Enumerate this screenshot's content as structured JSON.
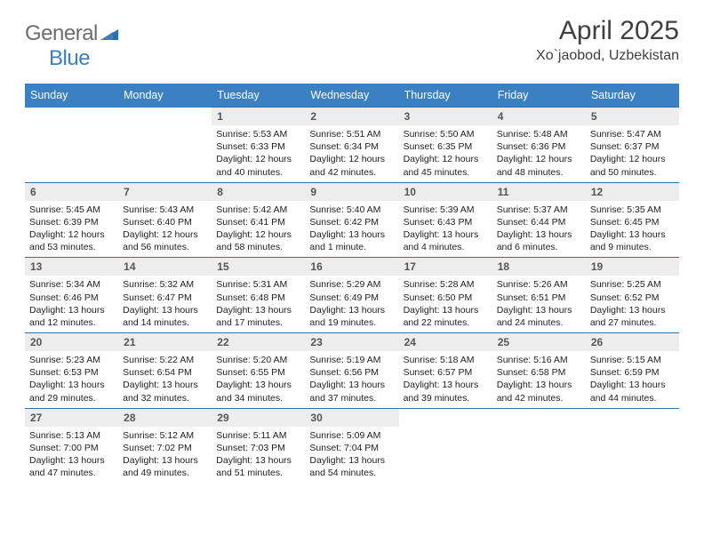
{
  "brand": {
    "part1": "General",
    "part2": "Blue"
  },
  "title": "April 2025",
  "location": "Xo`jaobod, Uzbekistan",
  "style": {
    "header_bg": "#3a80c3",
    "header_fg": "#ffffff",
    "daynum_bg": "#ededed",
    "border_color": "#3a6ea5",
    "page_bg": "#ffffff",
    "title_color": "#404040",
    "body_text": "#222222",
    "title_fontsize": 30,
    "location_fontsize": 16,
    "header_fontsize": 12.5,
    "cell_fontsize": 10.5
  },
  "days_of_week": [
    "Sunday",
    "Monday",
    "Tuesday",
    "Wednesday",
    "Thursday",
    "Friday",
    "Saturday"
  ],
  "weeks": [
    [
      null,
      null,
      {
        "n": "1",
        "sunrise": "Sunrise: 5:53 AM",
        "sunset": "Sunset: 6:33 PM",
        "daylight": "Daylight: 12 hours and 40 minutes."
      },
      {
        "n": "2",
        "sunrise": "Sunrise: 5:51 AM",
        "sunset": "Sunset: 6:34 PM",
        "daylight": "Daylight: 12 hours and 42 minutes."
      },
      {
        "n": "3",
        "sunrise": "Sunrise: 5:50 AM",
        "sunset": "Sunset: 6:35 PM",
        "daylight": "Daylight: 12 hours and 45 minutes."
      },
      {
        "n": "4",
        "sunrise": "Sunrise: 5:48 AM",
        "sunset": "Sunset: 6:36 PM",
        "daylight": "Daylight: 12 hours and 48 minutes."
      },
      {
        "n": "5",
        "sunrise": "Sunrise: 5:47 AM",
        "sunset": "Sunset: 6:37 PM",
        "daylight": "Daylight: 12 hours and 50 minutes."
      }
    ],
    [
      {
        "n": "6",
        "sunrise": "Sunrise: 5:45 AM",
        "sunset": "Sunset: 6:39 PM",
        "daylight": "Daylight: 12 hours and 53 minutes."
      },
      {
        "n": "7",
        "sunrise": "Sunrise: 5:43 AM",
        "sunset": "Sunset: 6:40 PM",
        "daylight": "Daylight: 12 hours and 56 minutes."
      },
      {
        "n": "8",
        "sunrise": "Sunrise: 5:42 AM",
        "sunset": "Sunset: 6:41 PM",
        "daylight": "Daylight: 12 hours and 58 minutes."
      },
      {
        "n": "9",
        "sunrise": "Sunrise: 5:40 AM",
        "sunset": "Sunset: 6:42 PM",
        "daylight": "Daylight: 13 hours and 1 minute."
      },
      {
        "n": "10",
        "sunrise": "Sunrise: 5:39 AM",
        "sunset": "Sunset: 6:43 PM",
        "daylight": "Daylight: 13 hours and 4 minutes."
      },
      {
        "n": "11",
        "sunrise": "Sunrise: 5:37 AM",
        "sunset": "Sunset: 6:44 PM",
        "daylight": "Daylight: 13 hours and 6 minutes."
      },
      {
        "n": "12",
        "sunrise": "Sunrise: 5:35 AM",
        "sunset": "Sunset: 6:45 PM",
        "daylight": "Daylight: 13 hours and 9 minutes."
      }
    ],
    [
      {
        "n": "13",
        "sunrise": "Sunrise: 5:34 AM",
        "sunset": "Sunset: 6:46 PM",
        "daylight": "Daylight: 13 hours and 12 minutes."
      },
      {
        "n": "14",
        "sunrise": "Sunrise: 5:32 AM",
        "sunset": "Sunset: 6:47 PM",
        "daylight": "Daylight: 13 hours and 14 minutes."
      },
      {
        "n": "15",
        "sunrise": "Sunrise: 5:31 AM",
        "sunset": "Sunset: 6:48 PM",
        "daylight": "Daylight: 13 hours and 17 minutes."
      },
      {
        "n": "16",
        "sunrise": "Sunrise: 5:29 AM",
        "sunset": "Sunset: 6:49 PM",
        "daylight": "Daylight: 13 hours and 19 minutes."
      },
      {
        "n": "17",
        "sunrise": "Sunrise: 5:28 AM",
        "sunset": "Sunset: 6:50 PM",
        "daylight": "Daylight: 13 hours and 22 minutes."
      },
      {
        "n": "18",
        "sunrise": "Sunrise: 5:26 AM",
        "sunset": "Sunset: 6:51 PM",
        "daylight": "Daylight: 13 hours and 24 minutes."
      },
      {
        "n": "19",
        "sunrise": "Sunrise: 5:25 AM",
        "sunset": "Sunset: 6:52 PM",
        "daylight": "Daylight: 13 hours and 27 minutes."
      }
    ],
    [
      {
        "n": "20",
        "sunrise": "Sunrise: 5:23 AM",
        "sunset": "Sunset: 6:53 PM",
        "daylight": "Daylight: 13 hours and 29 minutes."
      },
      {
        "n": "21",
        "sunrise": "Sunrise: 5:22 AM",
        "sunset": "Sunset: 6:54 PM",
        "daylight": "Daylight: 13 hours and 32 minutes."
      },
      {
        "n": "22",
        "sunrise": "Sunrise: 5:20 AM",
        "sunset": "Sunset: 6:55 PM",
        "daylight": "Daylight: 13 hours and 34 minutes."
      },
      {
        "n": "23",
        "sunrise": "Sunrise: 5:19 AM",
        "sunset": "Sunset: 6:56 PM",
        "daylight": "Daylight: 13 hours and 37 minutes."
      },
      {
        "n": "24",
        "sunrise": "Sunrise: 5:18 AM",
        "sunset": "Sunset: 6:57 PM",
        "daylight": "Daylight: 13 hours and 39 minutes."
      },
      {
        "n": "25",
        "sunrise": "Sunrise: 5:16 AM",
        "sunset": "Sunset: 6:58 PM",
        "daylight": "Daylight: 13 hours and 42 minutes."
      },
      {
        "n": "26",
        "sunrise": "Sunrise: 5:15 AM",
        "sunset": "Sunset: 6:59 PM",
        "daylight": "Daylight: 13 hours and 44 minutes."
      }
    ],
    [
      {
        "n": "27",
        "sunrise": "Sunrise: 5:13 AM",
        "sunset": "Sunset: 7:00 PM",
        "daylight": "Daylight: 13 hours and 47 minutes."
      },
      {
        "n": "28",
        "sunrise": "Sunrise: 5:12 AM",
        "sunset": "Sunset: 7:02 PM",
        "daylight": "Daylight: 13 hours and 49 minutes."
      },
      {
        "n": "29",
        "sunrise": "Sunrise: 5:11 AM",
        "sunset": "Sunset: 7:03 PM",
        "daylight": "Daylight: 13 hours and 51 minutes."
      },
      {
        "n": "30",
        "sunrise": "Sunrise: 5:09 AM",
        "sunset": "Sunset: 7:04 PM",
        "daylight": "Daylight: 13 hours and 54 minutes."
      },
      null,
      null,
      null
    ]
  ]
}
